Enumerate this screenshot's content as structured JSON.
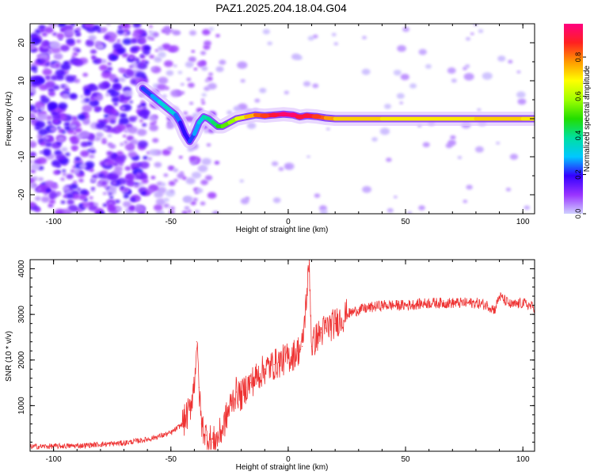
{
  "figure_title": "PAZ1.2025.204.18.04.G04",
  "colorbar": {
    "label": "Normalized spectral amplitude",
    "ticks": [
      "0.0",
      "0.2",
      "0.4",
      "0.6",
      "0.8"
    ],
    "tick_values": [
      0.0,
      0.2,
      0.4,
      0.6,
      0.8
    ],
    "range": [
      0.0,
      0.97
    ],
    "colors": [
      "#d0d0ff",
      "#9933ff",
      "#3300ff",
      "#00c8ff",
      "#00e0a0",
      "#22dd00",
      "#a0ff00",
      "#ffff00",
      "#ff9900",
      "#ff2020",
      "#ff0080"
    ]
  },
  "chart_data": [
    {
      "type": "heatmap",
      "xlabel": "Height of straight line (km)",
      "ylabel": "Frequency (Hz)",
      "xlim": [
        -110,
        105
      ],
      "ylim": [
        -25,
        25
      ],
      "xticks": [
        "-100",
        "-50",
        "0",
        "50",
        "100"
      ],
      "xtick_values": [
        -100,
        -50,
        0,
        50,
        100
      ],
      "yticks": [
        "20",
        "10",
        "0",
        "-10",
        "-20"
      ],
      "ytick_values": [
        20,
        10,
        0,
        -10,
        -20
      ],
      "ridge": {
        "x": [
          -62,
          -58,
          -55,
          -52,
          -50,
          -48,
          -46,
          -44,
          -42,
          -40,
          -38,
          -36,
          -34,
          -32,
          -30,
          -28,
          -25,
          -22,
          -18,
          -14,
          -10,
          -6,
          -2,
          2,
          5,
          8,
          12,
          16,
          20,
          25,
          30,
          40,
          50,
          60,
          70,
          80,
          90,
          100,
          105
        ],
        "y": [
          8,
          6,
          4.5,
          3,
          2,
          1,
          -1,
          -4,
          -6,
          -4,
          -1,
          0.5,
          0,
          -1,
          -2,
          -2,
          -1,
          0,
          0.5,
          1,
          0.8,
          1,
          1.2,
          1,
          0.5,
          0.8,
          0.6,
          0.2,
          0,
          0,
          0,
          0,
          0,
          0,
          0,
          0,
          0,
          0,
          0
        ],
        "amplitude": [
          0.2,
          0.25,
          0.3,
          0.35,
          0.35,
          0.3,
          0.2,
          0.2,
          0.2,
          0.25,
          0.3,
          0.35,
          0.4,
          0.4,
          0.45,
          0.5,
          0.55,
          0.6,
          0.7,
          0.8,
          0.85,
          0.9,
          0.95,
          0.95,
          0.9,
          0.9,
          0.85,
          0.8,
          0.75,
          0.7,
          0.75,
          0.7,
          0.7,
          0.7,
          0.7,
          0.7,
          0.75,
          0.7,
          0.7
        ]
      }
    },
    {
      "type": "line",
      "xlabel": "Height of straight line (km)",
      "ylabel": "SNR (10 * v/v)",
      "xlim": [
        -110,
        105
      ],
      "ylim": [
        0,
        4200
      ],
      "xticks": [
        "-100",
        "-50",
        "0",
        "50",
        "100"
      ],
      "xtick_values": [
        -100,
        -50,
        0,
        50,
        100
      ],
      "yticks": [
        "4000",
        "3000",
        "2000",
        "1000"
      ],
      "ytick_values": [
        4000,
        3000,
        2000,
        1000
      ],
      "color": "#ee3333",
      "series": [
        {
          "x": [
            -110,
            -100,
            -90,
            -80,
            -70,
            -60,
            -50,
            -45,
            -42,
            -40,
            -39,
            -38,
            -37,
            -35,
            -32,
            -30,
            -28,
            -26,
            -24,
            -22,
            -20,
            -18,
            -16,
            -14,
            -12,
            -10,
            -8,
            -6,
            -4,
            -2,
            0,
            2,
            4,
            6,
            8,
            9,
            10,
            12,
            14,
            16,
            18,
            20,
            22,
            25,
            30,
            35,
            40,
            50,
            60,
            70,
            80,
            85,
            88,
            90,
            95,
            100,
            105
          ],
          "y": [
            100,
            110,
            120,
            150,
            180,
            260,
            400,
            600,
            900,
            1500,
            2400,
            1400,
            600,
            350,
            200,
            300,
            500,
            800,
            1100,
            1300,
            1200,
            1400,
            1500,
            1600,
            1700,
            1800,
            1850,
            1900,
            1950,
            2000,
            2050,
            2100,
            2200,
            2300,
            3500,
            4100,
            2300,
            2500,
            2600,
            2700,
            2750,
            2800,
            2900,
            3000,
            3100,
            3150,
            3200,
            3200,
            3250,
            3250,
            3250,
            3200,
            3100,
            3400,
            3200,
            3250,
            3150
          ]
        }
      ]
    }
  ]
}
